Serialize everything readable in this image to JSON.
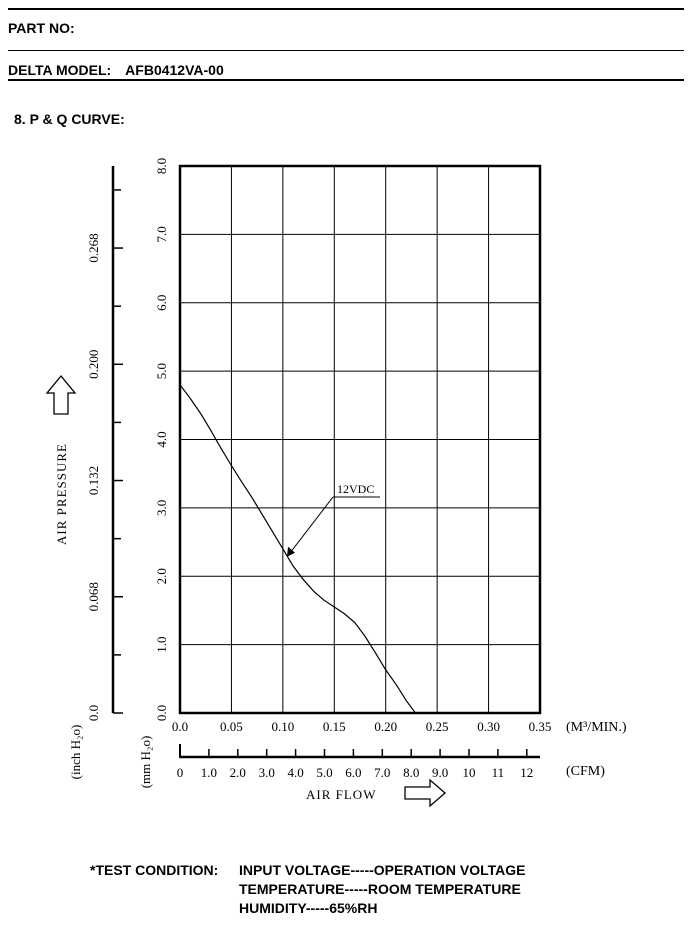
{
  "header": {
    "part_no_label": "PART NO:",
    "model_label": "DELTA MODEL:",
    "model_value": "AFB0412VA-00",
    "section_title": "8. P & Q CURVE:"
  },
  "chart_data": {
    "type": "line",
    "xlim": [
      0,
      0.35
    ],
    "ylim": [
      0,
      8
    ],
    "x_ticks": [
      "0.0",
      "0.05",
      "0.10",
      "0.15",
      "0.20",
      "0.25",
      "0.30",
      "0.35"
    ],
    "x_unit": "(M³/MIN.)",
    "cfm_ticks": [
      "0",
      "1.0",
      "2.0",
      "3.0",
      "4.0",
      "5.0",
      "6.0",
      "7.0",
      "8.0",
      "9.0",
      "10",
      "11",
      "12"
    ],
    "cfm_unit": "(CFM)",
    "xlabel": "AIR FLOW",
    "y_ticks": [
      "0.0",
      "1.0",
      "2.0",
      "3.0",
      "4.0",
      "5.0",
      "6.0",
      "7.0",
      "8.0"
    ],
    "y_unit": "(mm H₂o)",
    "inch_ticks": [
      {
        "label": "0.0",
        "mm": 0
      },
      {
        "label": "0.068",
        "mm": 1.7
      },
      {
        "label": "0.132",
        "mm": 3.4
      },
      {
        "label": "0.200",
        "mm": 5.1
      },
      {
        "label": "0.268",
        "mm": 6.8
      }
    ],
    "inch_minor_mm": [
      0.85,
      2.55,
      4.25,
      5.95,
      7.65
    ],
    "inch_unit": "(inch H₂o)",
    "ylabel": "AIR PRESSURE",
    "grid": true,
    "series": [
      {
        "name": "12VDC",
        "x": [
          0.0,
          0.01,
          0.02,
          0.03,
          0.04,
          0.05,
          0.06,
          0.07,
          0.08,
          0.09,
          0.1,
          0.11,
          0.12,
          0.13,
          0.14,
          0.15,
          0.16,
          0.17,
          0.18,
          0.19,
          0.2,
          0.21,
          0.22,
          0.229
        ],
        "y": [
          4.8,
          4.6,
          4.38,
          4.13,
          3.87,
          3.62,
          3.38,
          3.15,
          2.9,
          2.65,
          2.4,
          2.15,
          1.95,
          1.78,
          1.65,
          1.55,
          1.45,
          1.32,
          1.12,
          0.88,
          0.63,
          0.42,
          0.18,
          0.0
        ]
      }
    ],
    "annotation": {
      "text": "12VDC",
      "x": 0.105,
      "y": 2.3
    }
  },
  "conditions": {
    "label": "*TEST CONDITION:",
    "lines": [
      "INPUT VOLTAGE-----OPERATION VOLTAGE",
      "TEMPERATURE-----ROOM TEMPERATURE",
      "HUMIDITY-----65%RH"
    ]
  }
}
